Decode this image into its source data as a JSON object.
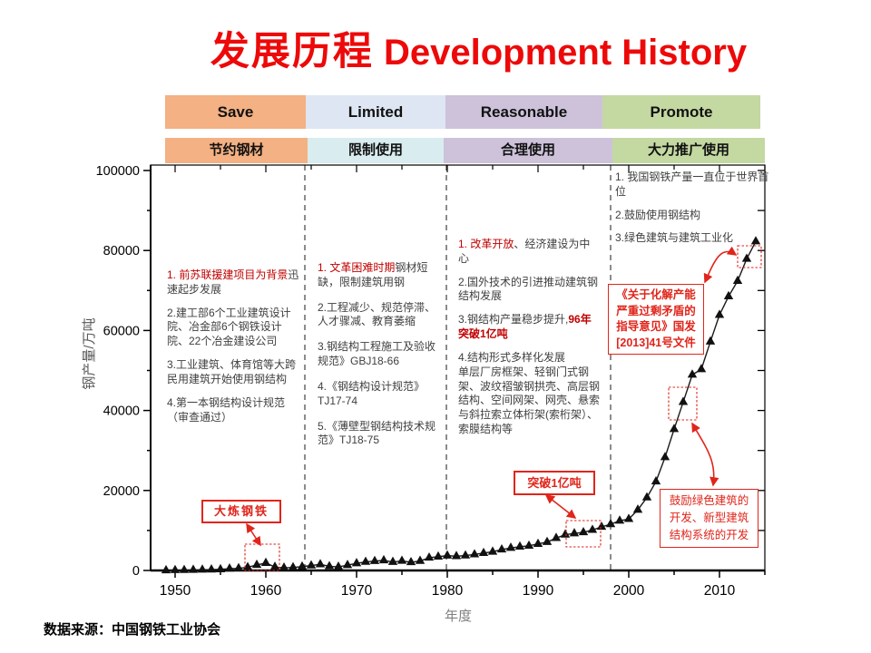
{
  "title": {
    "zh": "发展历程",
    "en": " Development History",
    "color": "#ed0909"
  },
  "header": {
    "row_en": [
      {
        "label": "Save",
        "color": "#f4b183"
      },
      {
        "label": "Limited",
        "color": "#dde6f2"
      },
      {
        "label": "Reasonable",
        "color": "#cdc2da"
      },
      {
        "label": "Promote",
        "color": "#c4d8a2"
      }
    ],
    "row_zh": [
      {
        "label": "节约钢材",
        "color": "#f4b183"
      },
      {
        "label": "限制使用",
        "color": "#d9ecf0"
      },
      {
        "label": "合理使用",
        "color": "#cdc2da"
      },
      {
        "label": "大力推广使用",
        "color": "#c4d8a2"
      }
    ]
  },
  "periods": [
    {
      "name": "save",
      "items": [
        {
          "segments": [
            {
              "text": "1. 前苏联援建项目为背景",
              "red": true
            },
            {
              "text": "迅速起步发展"
            }
          ]
        },
        {
          "segments": [
            {
              "text": "2.建工部6个工业建筑设计院、冶金部6个钢铁设计院、22个冶金建设公司"
            }
          ]
        },
        {
          "segments": [
            {
              "text": "3.工业建筑、体育馆等大跨民用建筑开始使用钢结构"
            }
          ]
        },
        {
          "segments": [
            {
              "text": "4.第一本钢结构设计规范（审查通过）"
            }
          ]
        }
      ]
    },
    {
      "name": "limited",
      "items": [
        {
          "segments": [
            {
              "text": "1. 文革困难时期",
              "red": true
            },
            {
              "text": "钢材短缺，限制建筑用钢"
            }
          ]
        },
        {
          "segments": [
            {
              "text": "2.工程减少、规范停滞、人才骤减、教育萎缩"
            }
          ]
        },
        {
          "segments": [
            {
              "text": "3.钢结构工程施工及验收规范》GBJ18-66"
            }
          ]
        },
        {
          "segments": [
            {
              "text": "4.《钢结构设计规范》TJ17-74"
            }
          ]
        },
        {
          "segments": [
            {
              "text": "5.《薄壁型钢结构技术规范》TJ18-75"
            }
          ]
        }
      ]
    },
    {
      "name": "reasonable",
      "items": [
        {
          "segments": [
            {
              "text": "1. 改革开放",
              "red": true
            },
            {
              "text": "、经济建设为中心"
            }
          ]
        },
        {
          "segments": [
            {
              "text": "2.国外技术的引进推动建筑钢结构发展"
            }
          ]
        },
        {
          "segments": [
            {
              "text": "3.钢结构产量稳步提升,"
            },
            {
              "text": "96年突破1亿吨",
              "red": true,
              "bold": true
            }
          ]
        },
        {
          "segments": [
            {
              "text": "4.结构形式多样化发展\n单层厂房框架、轻钢门式钢架、波纹褶皱钢拱壳、高层钢结构、空间网架、网壳、悬索与斜拉索立体桁架(索桁架）、索膜结构等"
            }
          ]
        }
      ]
    },
    {
      "name": "promote",
      "items": [
        {
          "segments": [
            {
              "text": "1. 我国钢铁产量一直位于世界首位"
            }
          ]
        },
        {
          "segments": [
            {
              "text": "2.鼓励使用钢结构"
            }
          ]
        },
        {
          "segments": [
            {
              "text": "3.绿色建筑与建筑工业化"
            }
          ]
        }
      ]
    }
  ],
  "callouts": {
    "dalian": {
      "text": "大炼钢铁"
    },
    "tupo": {
      "text": "突破1亿吨"
    },
    "guofa": {
      "text": "《关于化解产能\n严重过剩矛盾的\n指导意见》国发\n[2013]41号文件"
    },
    "guli": {
      "text": "鼓励绿色建筑的\n开发、新型建筑\n结构系统的开发"
    },
    "accent_color": "#e0251b"
  },
  "axes": {
    "y_title": "钢产量/万吨",
    "x_title": "年度"
  },
  "source": "数据来源：中国钢铁工业协会",
  "chart_data": {
    "type": "scatter",
    "title": "发展历程 Development History",
    "xlabel": "年度",
    "ylabel": "钢产量/万吨",
    "xlim": [
      1947,
      2015
    ],
    "ylim": [
      0,
      101600
    ],
    "x_ticks": [
      1950,
      1960,
      1970,
      1980,
      1990,
      2000,
      2010
    ],
    "y_ticks": [
      0,
      20000,
      40000,
      60000,
      80000,
      100000
    ],
    "grid": false,
    "legend": "none",
    "marker": "triangle-up",
    "line_through_points": true,
    "period_divider_years": [
      1964.3,
      1979.9,
      1998
    ],
    "series": [
      {
        "name": "中国钢产量（万吨）",
        "x": [
          1949,
          1950,
          1951,
          1952,
          1953,
          1954,
          1955,
          1956,
          1957,
          1958,
          1959,
          1960,
          1961,
          1962,
          1963,
          1964,
          1965,
          1966,
          1967,
          1968,
          1969,
          1970,
          1971,
          1972,
          1973,
          1974,
          1975,
          1976,
          1977,
          1978,
          1979,
          1980,
          1981,
          1982,
          1983,
          1984,
          1985,
          1986,
          1987,
          1988,
          1989,
          1990,
          1991,
          1992,
          1993,
          1994,
          1995,
          1996,
          1997,
          1998,
          1999,
          2000,
          2001,
          2002,
          2003,
          2004,
          2005,
          2006,
          2007,
          2008,
          2009,
          2010,
          2011,
          2012,
          2013,
          2014
        ],
        "y": [
          16,
          61,
          90,
          135,
          177,
          223,
          285,
          447,
          535,
          800,
          1387,
          1866,
          870,
          667,
          762,
          964,
          1223,
          1532,
          1029,
          904,
          1333,
          1779,
          2132,
          2338,
          2522,
          2112,
          2390,
          2046,
          2374,
          3178,
          3448,
          3712,
          3560,
          3716,
          4002,
          4347,
          4679,
          5221,
          5628,
          5943,
          6159,
          6635,
          7100,
          8094,
          8956,
          9261,
          9536,
          10124,
          10894,
          11559,
          12426,
          12850,
          15163,
          18237,
          22234,
          28291,
          35324,
          42102,
          48929,
          50306,
          57218,
          63874,
          68528,
          72388,
          77904,
          82270
        ]
      }
    ],
    "annotations": [
      {
        "text": "大炼钢铁",
        "target_years": "1958-1962"
      },
      {
        "text": "突破1亿吨",
        "target_years": "1996"
      },
      {
        "text": "《关于化解产能严重过剩矛盾的指导意见》国发[2013]41号文件",
        "target_years": "2013"
      },
      {
        "text": "鼓励绿色建筑的开发、新型建筑结构系统的开发",
        "target_years": "2005-2006"
      }
    ]
  }
}
